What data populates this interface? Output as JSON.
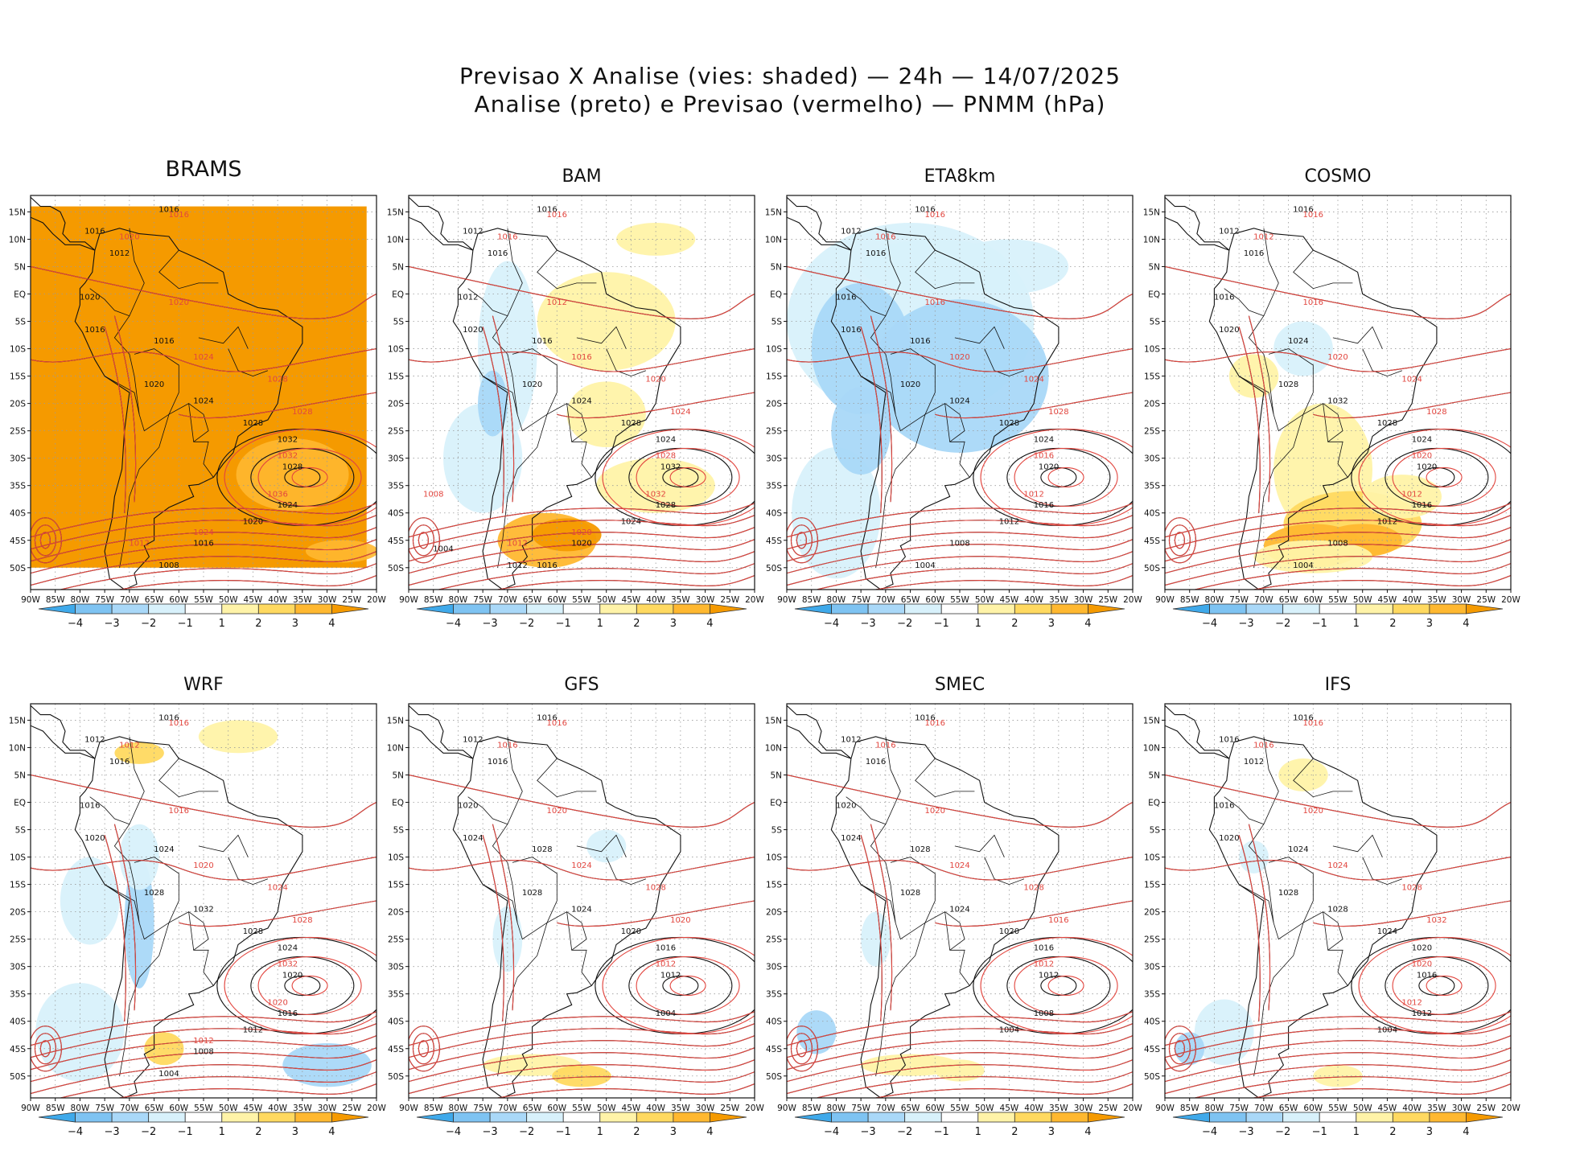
{
  "title": {
    "line1": "Previsao X Analise (vies: shaded) — 24h — 14/07/2025",
    "line2": "Analise (preto) e Previsao (vermelho) — PNMM (hPa)"
  },
  "axes": {
    "lat_labels": [
      "15N",
      "10N",
      "5N",
      "EQ",
      "5S",
      "10S",
      "15S",
      "20S",
      "25S",
      "30S",
      "35S",
      "40S",
      "45S",
      "50S"
    ],
    "lon_labels": [
      "90W",
      "85W",
      "80W",
      "75W",
      "70W",
      "65W",
      "60W",
      "55W",
      "50W",
      "45W",
      "40W",
      "35W",
      "30W",
      "25W",
      "20W"
    ]
  },
  "colorbar": {
    "labels": [
      "−4",
      "−3",
      "−2",
      "−1",
      "1",
      "2",
      "3",
      "4"
    ],
    "colors": [
      "#3fa9ea",
      "#7ec3f2",
      "#a9d8f8",
      "#d8f1fb",
      "#ffffff",
      "#fff3a8",
      "#ffd960",
      "#ffb830",
      "#f59a00"
    ]
  },
  "isobar_colors": {
    "analysis": "#111111",
    "forecast": "#e2463f"
  },
  "panels": [
    {
      "id": "brams",
      "title": "BRAMS",
      "labels_black": [
        "1016",
        "1016",
        "1012",
        "1020",
        "1016",
        "1016",
        "1020",
        "1024",
        "1028",
        "1032",
        "1028",
        "1024",
        "1020",
        "1016",
        "1008"
      ],
      "labels_red": [
        "1016",
        "1020",
        "1020",
        "1024",
        "1028",
        "1028",
        "1032",
        "1036",
        "1024",
        "1012"
      ]
    },
    {
      "id": "bam",
      "title": "BAM",
      "labels_black": [
        "1016",
        "1012",
        "1016",
        "1012",
        "1020",
        "1016",
        "1020",
        "1024",
        "1028",
        "1024",
        "1032",
        "1028",
        "1024",
        "1020",
        "1016",
        "1012",
        "1004"
      ],
      "labels_red": [
        "1016",
        "1016",
        "1012",
        "1016",
        "1020",
        "1024",
        "1028",
        "1032",
        "1020",
        "1012",
        "1008"
      ]
    },
    {
      "id": "eta8km",
      "title": "ETA8km",
      "labels_black": [
        "1016",
        "1012",
        "1016",
        "1016",
        "1016",
        "1016",
        "1020",
        "1024",
        "1028",
        "1024",
        "1020",
        "1016",
        "1012",
        "1008",
        "1004"
      ],
      "labels_red": [
        "1016",
        "1016",
        "1016",
        "1020",
        "1024",
        "1028",
        "1016",
        "1012"
      ]
    },
    {
      "id": "cosmo",
      "title": "COSMO",
      "labels_black": [
        "1016",
        "1012",
        "1016",
        "1016",
        "1020",
        "1024",
        "1028",
        "1032",
        "1028",
        "1024",
        "1020",
        "1016",
        "1012",
        "1008",
        "1004"
      ],
      "labels_red": [
        "1016",
        "1012",
        "1016",
        "1020",
        "1024",
        "1028",
        "1020",
        "1012"
      ]
    },
    {
      "id": "wrf",
      "title": "WRF",
      "labels_black": [
        "1016",
        "1012",
        "1016",
        "1016",
        "1020",
        "1024",
        "1028",
        "1032",
        "1028",
        "1024",
        "1020",
        "1016",
        "1012",
        "1008",
        "1004"
      ],
      "labels_red": [
        "1016",
        "1012",
        "1016",
        "1020",
        "1024",
        "1028",
        "1032",
        "1020",
        "1012"
      ]
    },
    {
      "id": "gfs",
      "title": "GFS",
      "labels_black": [
        "1016",
        "1012",
        "1016",
        "1020",
        "1024",
        "1028",
        "1028",
        "1024",
        "1020",
        "1016",
        "1012",
        "1004"
      ],
      "labels_red": [
        "1016",
        "1016",
        "1020",
        "1024",
        "1028",
        "1020",
        "1012"
      ]
    },
    {
      "id": "smec",
      "title": "SMEC",
      "labels_black": [
        "1016",
        "1012",
        "1016",
        "1020",
        "1024",
        "1028",
        "1028",
        "1024",
        "1020",
        "1016",
        "1012",
        "1008",
        "1004"
      ],
      "labels_red": [
        "1016",
        "1016",
        "1020",
        "1024",
        "1028",
        "1016",
        "1012"
      ]
    },
    {
      "id": "ifs",
      "title": "IFS",
      "labels_black": [
        "1016",
        "1016",
        "1012",
        "1016",
        "1020",
        "1024",
        "1028",
        "1028",
        "1024",
        "1020",
        "1016",
        "1012",
        "1004"
      ],
      "labels_red": [
        "1016",
        "1016",
        "1020",
        "1024",
        "1028",
        "1032",
        "1020",
        "1012"
      ]
    }
  ]
}
